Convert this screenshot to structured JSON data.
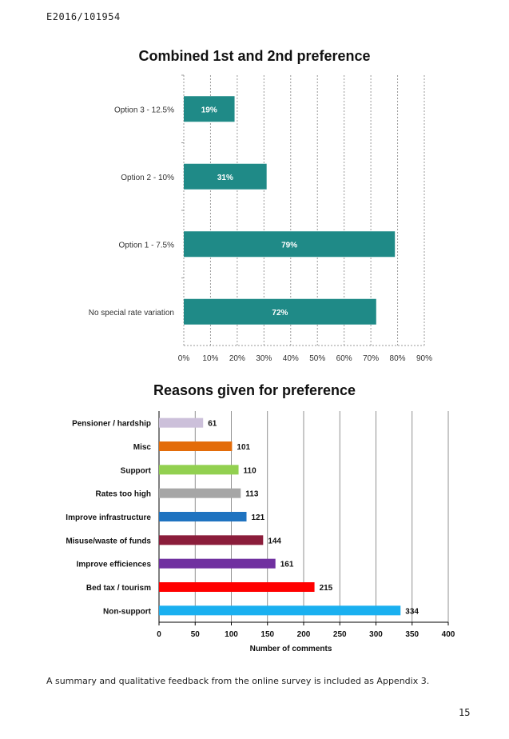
{
  "document": {
    "reference": "E2016/101954",
    "footer_text": "A summary and qualitative feedback from the online survey is included as Appendix 3.",
    "page_number": "15"
  },
  "chart_data": [
    {
      "type": "bar",
      "orientation": "horizontal",
      "title": "Combined 1st and 2nd preference",
      "categories": [
        "Option 3 - 12.5%",
        "Option 2 - 10%",
        "Option 1 - 7.5%",
        "No special rate variation"
      ],
      "values": [
        19,
        31,
        79,
        72
      ],
      "data_labels": [
        "19%",
        "31%",
        "79%",
        "72%"
      ],
      "xlim": [
        0,
        90
      ],
      "x_ticks": [
        "0%",
        "10%",
        "20%",
        "30%",
        "40%",
        "50%",
        "60%",
        "70%",
        "80%",
        "90%"
      ],
      "bar_color": "#1f8a87",
      "grid": "vertical dashed",
      "xlabel": "",
      "ylabel": ""
    },
    {
      "type": "bar",
      "orientation": "horizontal",
      "title": "Reasons given for preference",
      "categories": [
        "Pensioner / hardship",
        "Misc",
        "Support",
        "Rates too high",
        "Improve infrastructure",
        "Misuse/waste of funds",
        "Improve efficiences",
        "Bed tax / tourism",
        "Non-support"
      ],
      "values": [
        61,
        101,
        110,
        113,
        121,
        144,
        161,
        215,
        334
      ],
      "colors": [
        "#ccc0da",
        "#e36c0a",
        "#92d050",
        "#a6a6a6",
        "#1f73c0",
        "#8b1d3b",
        "#7030a0",
        "#ff0000",
        "#1ab0f0"
      ],
      "xlim": [
        0,
        400
      ],
      "x_ticks": [
        "0",
        "50",
        "100",
        "150",
        "200",
        "250",
        "300",
        "350",
        "400"
      ],
      "xlabel": "Number of comments",
      "ylabel": "",
      "grid": "vertical solid"
    }
  ]
}
